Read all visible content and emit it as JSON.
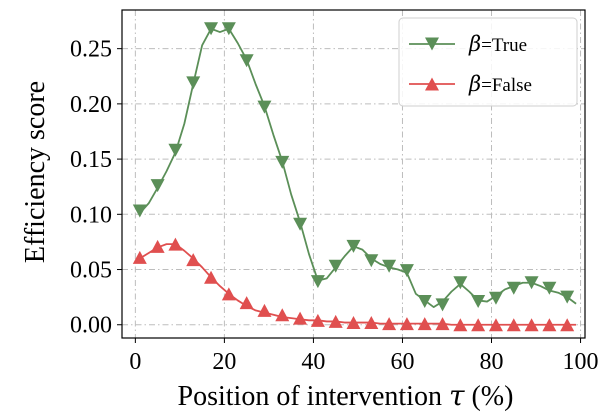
{
  "chart_data": {
    "type": "line",
    "xlabel_text": "Position of intervention ",
    "xlabel_symbol": "τ",
    "xlabel_unit": " (%)",
    "ylabel": "Efficiency score",
    "xlim": [
      -3,
      101
    ],
    "ylim": [
      -0.012,
      0.285
    ],
    "x_ticks": [
      0,
      20,
      40,
      60,
      80,
      100
    ],
    "x_tick_labels": [
      "0",
      "20",
      "40",
      "60",
      "80",
      "100"
    ],
    "y_ticks": [
      0.0,
      0.05,
      0.1,
      0.15,
      0.2,
      0.25
    ],
    "y_tick_labels": [
      "0.00",
      "0.05",
      "0.10",
      "0.15",
      "0.20",
      "0.25"
    ],
    "grid": true,
    "legend_position": "top-right",
    "series": [
      {
        "legend_symbol": "β",
        "legend_text": "=True",
        "color": "#5b8f58",
        "marker": "triangle-down",
        "smooth_x": [
          1,
          3,
          5,
          7,
          9,
          11,
          13,
          15,
          17,
          19,
          21,
          23,
          25,
          27,
          29,
          31,
          33,
          35,
          37,
          39,
          41,
          43,
          45,
          47,
          49,
          51,
          53,
          55,
          57,
          59,
          61,
          63,
          65,
          67,
          69,
          71,
          73,
          75,
          77,
          79,
          81,
          83,
          85,
          87,
          89,
          91,
          93,
          95,
          97,
          99
        ],
        "smooth_y": [
          0.101,
          0.11,
          0.124,
          0.139,
          0.156,
          0.182,
          0.218,
          0.253,
          0.268,
          0.265,
          0.268,
          0.255,
          0.24,
          0.218,
          0.198,
          0.172,
          0.148,
          0.118,
          0.093,
          0.064,
          0.04,
          0.042,
          0.052,
          0.062,
          0.071,
          0.068,
          0.06,
          0.055,
          0.052,
          0.05,
          0.047,
          0.028,
          0.022,
          0.016,
          0.021,
          0.03,
          0.037,
          0.03,
          0.022,
          0.021,
          0.026,
          0.032,
          0.035,
          0.038,
          0.038,
          0.035,
          0.031,
          0.029,
          0.025,
          0.019
        ],
        "marker_x": [
          1,
          5,
          9,
          13,
          17,
          21,
          25,
          29,
          33,
          37,
          41,
          45,
          49,
          53,
          57,
          61,
          65,
          69,
          73,
          77,
          81,
          85,
          89,
          93,
          97
        ],
        "marker_y": [
          0.103,
          0.126,
          0.158,
          0.219,
          0.268,
          0.268,
          0.239,
          0.197,
          0.147,
          0.091,
          0.039,
          0.053,
          0.071,
          0.058,
          0.053,
          0.049,
          0.021,
          0.018,
          0.038,
          0.021,
          0.024,
          0.033,
          0.038,
          0.033,
          0.025
        ]
      },
      {
        "legend_symbol": "β",
        "legend_text": "=False",
        "color": "#e04f4f",
        "marker": "triangle-up",
        "smooth_x": [
          1,
          3,
          5,
          7,
          9,
          11,
          13,
          15,
          17,
          19,
          21,
          23,
          25,
          27,
          29,
          31,
          33,
          35,
          37,
          39,
          41,
          43,
          45,
          47,
          49,
          51,
          53,
          55,
          57,
          59,
          61,
          63,
          65,
          67,
          69,
          71,
          73,
          75,
          77,
          79,
          81,
          83,
          85,
          87,
          89,
          91,
          93,
          95,
          97,
          99
        ],
        "smooth_y": [
          0.06,
          0.065,
          0.07,
          0.073,
          0.073,
          0.067,
          0.06,
          0.052,
          0.043,
          0.035,
          0.028,
          0.022,
          0.017,
          0.013,
          0.011,
          0.009,
          0.007,
          0.006,
          0.005,
          0.004,
          0.004,
          0.003,
          0.003,
          0.002,
          0.002,
          0.002,
          0.002,
          0.001,
          0.001,
          0.001,
          0.001,
          0.001,
          0.001,
          0.001,
          0.001,
          0.0,
          0.0,
          0.0,
          0.0,
          0.0,
          0.0,
          0.0,
          0.0,
          0.0,
          0.0,
          0.0,
          0.0,
          0.0,
          0.0,
          0.0
        ],
        "marker_x": [
          1,
          5,
          9,
          13,
          17,
          21,
          25,
          29,
          33,
          37,
          41,
          45,
          49,
          53,
          57,
          61,
          65,
          69,
          73,
          77,
          81,
          85,
          89,
          93,
          97
        ],
        "marker_y": [
          0.061,
          0.071,
          0.073,
          0.059,
          0.043,
          0.028,
          0.02,
          0.013,
          0.009,
          0.006,
          0.004,
          0.003,
          0.002,
          0.002,
          0.001,
          0.001,
          0.001,
          0.001,
          0.0,
          0.0,
          0.0,
          0.0,
          0.0,
          0.0,
          0.0
        ]
      }
    ]
  }
}
